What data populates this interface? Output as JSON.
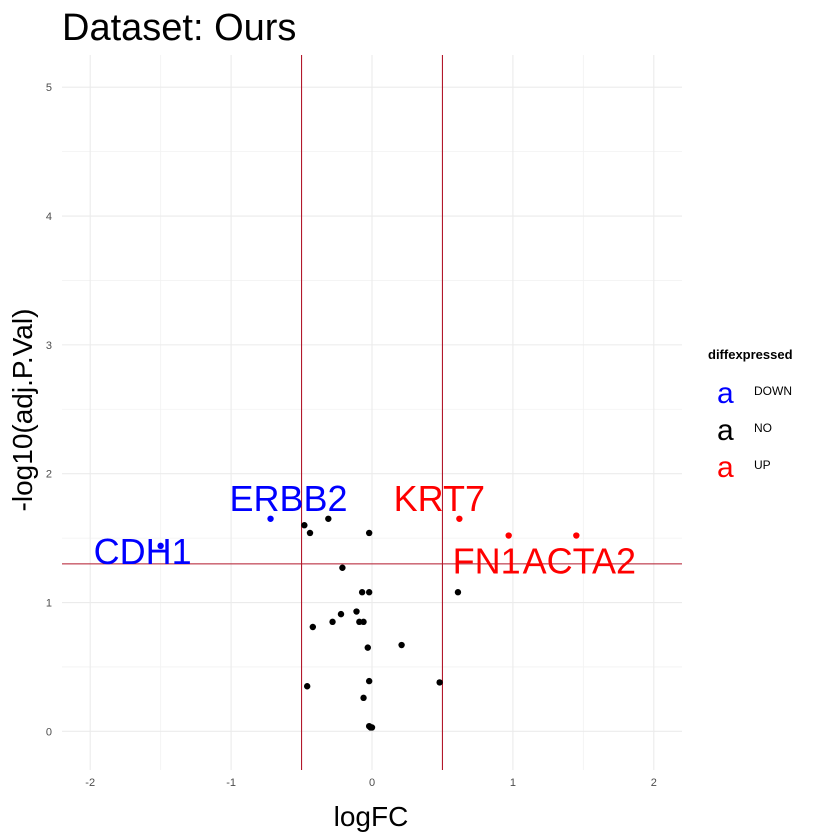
{
  "chart_data": {
    "type": "scatter",
    "title": "Dataset: Ours",
    "xlabel": "logFC",
    "ylabel": "-log10(adj.P.Val)",
    "xlim": [
      -2.2,
      2.2
    ],
    "ylim": [
      -0.3,
      5.25
    ],
    "x_ticks": [
      -2,
      -1,
      0,
      1,
      2
    ],
    "y_ticks": [
      0,
      1,
      2,
      3,
      4,
      5
    ],
    "grid": true,
    "vlines": [
      -0.5,
      0.5
    ],
    "hline": 1.3,
    "reference_line_color": "#b2182b",
    "legend": {
      "title": "diffexpressed",
      "placement": "right",
      "key_glyph": "a",
      "entries": [
        {
          "label": "DOWN",
          "color": "#0000ff"
        },
        {
          "label": "NO",
          "color": "#000000"
        },
        {
          "label": "UP",
          "color": "#ff0000"
        }
      ]
    },
    "series": [
      {
        "name": "DOWN",
        "color": "#0000ff",
        "points": [
          {
            "x": -1.5,
            "y": 1.44,
            "label": "CDH1"
          },
          {
            "x": -0.72,
            "y": 1.65,
            "label": "ERBB2"
          }
        ]
      },
      {
        "name": "NO",
        "color": "#000000",
        "points": [
          {
            "x": -0.48,
            "y": 1.6
          },
          {
            "x": -0.44,
            "y": 1.54
          },
          {
            "x": -0.31,
            "y": 1.65
          },
          {
            "x": -0.02,
            "y": 1.54
          },
          {
            "x": -0.21,
            "y": 1.27
          },
          {
            "x": -0.07,
            "y": 1.08
          },
          {
            "x": -0.02,
            "y": 1.08
          },
          {
            "x": -0.42,
            "y": 0.81
          },
          {
            "x": -0.28,
            "y": 0.85
          },
          {
            "x": -0.22,
            "y": 0.91
          },
          {
            "x": -0.11,
            "y": 0.93
          },
          {
            "x": -0.09,
            "y": 0.85
          },
          {
            "x": -0.06,
            "y": 0.85
          },
          {
            "x": -0.03,
            "y": 0.65
          },
          {
            "x": 0.21,
            "y": 0.67
          },
          {
            "x": -0.46,
            "y": 0.35
          },
          {
            "x": -0.02,
            "y": 0.39
          },
          {
            "x": -0.06,
            "y": 0.26
          },
          {
            "x": 0.48,
            "y": 0.38
          },
          {
            "x": -0.02,
            "y": 0.04
          },
          {
            "x": -0.01,
            "y": 0.03
          },
          {
            "x": 0.0,
            "y": 0.03
          },
          {
            "x": 0.61,
            "y": 1.08
          }
        ]
      },
      {
        "name": "UP",
        "color": "#ff0000",
        "points": [
          {
            "x": 0.62,
            "y": 1.65,
            "label": "KRT7"
          },
          {
            "x": 0.97,
            "y": 1.52,
            "label": "FN1"
          },
          {
            "x": 1.45,
            "y": 1.52,
            "label": "ACTA2"
          }
        ]
      }
    ]
  }
}
